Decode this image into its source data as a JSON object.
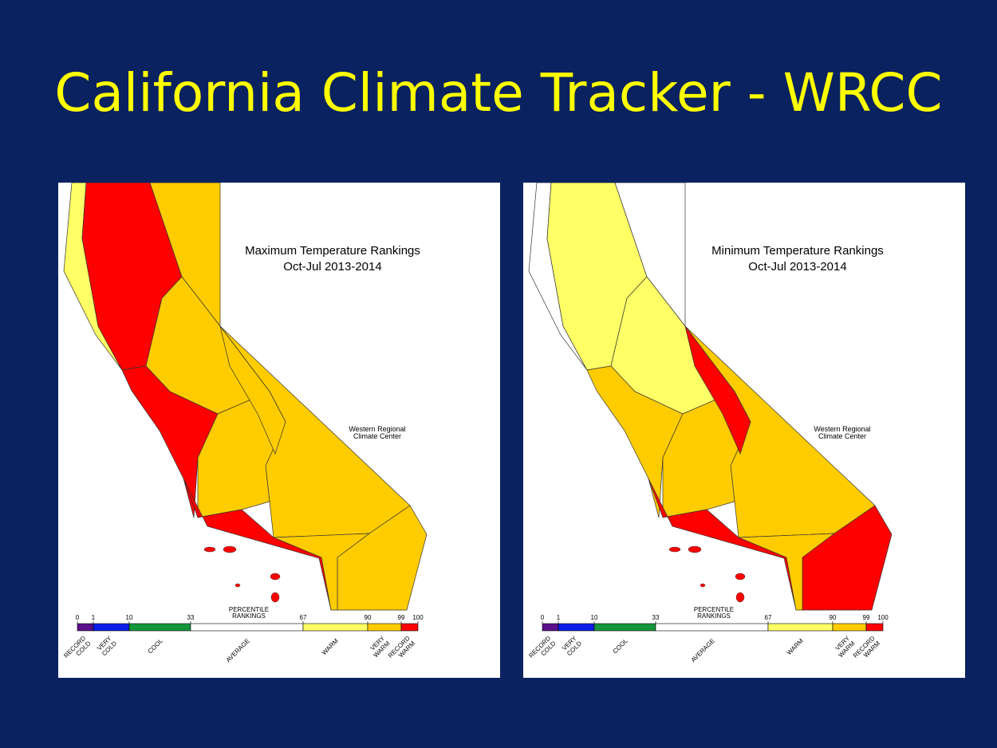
{
  "title": "California Climate Tracker - WRCC",
  "maps": [
    {
      "title": "Maximum Temperature Rankings",
      "period": "Oct-Jul 2013-2014",
      "credit": [
        "Western Regional",
        "Climate Center"
      ]
    },
    {
      "title": "Minimum Temperature Rankings",
      "period": "Oct-Jul 2013-2014",
      "credit": [
        "Western Regional",
        "Climate Center"
      ]
    }
  ],
  "legend": {
    "title": [
      "PERCENTILE",
      "RANKINGS"
    ],
    "ticks": [
      0,
      1,
      10,
      33,
      67,
      90,
      99,
      100
    ],
    "classes": [
      {
        "label": [
          "RECORD",
          "COLD"
        ],
        "color": "#5a0f8c"
      },
      {
        "label": [
          "VERY",
          "COLD"
        ],
        "color": "#0a1ee6"
      },
      {
        "label": [
          "COOL"
        ],
        "color": "#14963c"
      },
      {
        "label": [
          "AVERAGE"
        ],
        "color": "#ffffff"
      },
      {
        "label": [
          "WARM"
        ],
        "color": "#ffff66"
      },
      {
        "label": [
          "VERY",
          "WARM"
        ],
        "color": "#ffcc00"
      },
      {
        "label": [
          "RECORD",
          "WARM"
        ],
        "color": "#ff0000"
      }
    ]
  }
}
